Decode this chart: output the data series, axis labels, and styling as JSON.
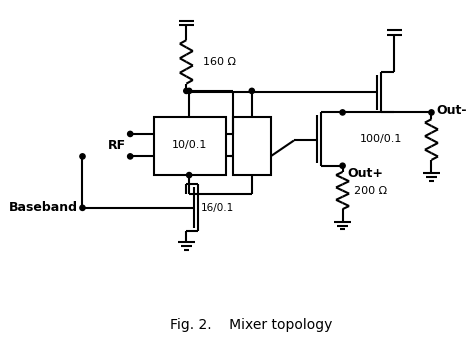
{
  "title": "Fig. 2.    Mixer topology",
  "title_fontsize": 10,
  "bg_color": "#ffffff",
  "line_color": "#000000",
  "linewidth": 1.5,
  "labels": {
    "r160": "160 Ω",
    "m1": "10/0.1",
    "m2": "16/0.1",
    "m3": "100/0.1",
    "r200": "200 Ω",
    "RF": "RF",
    "BB": "Baseband",
    "outp": "Out+",
    "outm": "Out-"
  }
}
